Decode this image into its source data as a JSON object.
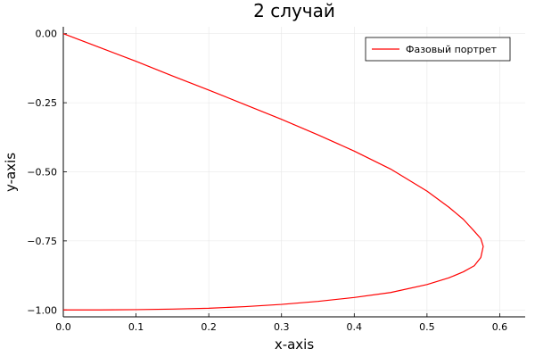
{
  "chart_data": {
    "type": "line",
    "title": "2 случай",
    "xlabel": "x-axis",
    "ylabel": "y-axis",
    "xlim": [
      0,
      0.635
    ],
    "ylim": [
      -1.025,
      0.025
    ],
    "xticks": [
      0.0,
      0.1,
      0.2,
      0.3,
      0.4,
      0.5,
      0.6
    ],
    "xtick_labels": [
      "0.0",
      "0.1",
      "0.2",
      "0.3",
      "0.4",
      "0.5",
      "0.6"
    ],
    "yticks": [
      0.0,
      -0.25,
      -0.5,
      -0.75,
      -1.0
    ],
    "ytick_labels": [
      "0.00",
      "−0.25",
      "−0.50",
      "−0.75",
      "−1.00"
    ],
    "grid": true,
    "legend_position": "top-right",
    "series": [
      {
        "name": "Фазовый портрет",
        "color": "#ff0000",
        "x": [
          0.0,
          0.05,
          0.1,
          0.15,
          0.2,
          0.25,
          0.3,
          0.35,
          0.4,
          0.45,
          0.5,
          0.53,
          0.55,
          0.565,
          0.574,
          0.5773,
          0.574,
          0.565,
          0.55,
          0.53,
          0.5,
          0.45,
          0.4,
          0.35,
          0.3,
          0.25,
          0.2,
          0.15,
          0.1,
          0.05,
          0.0
        ],
        "y": [
          0.0,
          -0.05,
          -0.1,
          -0.153,
          -0.204,
          -0.257,
          -0.31,
          -0.366,
          -0.425,
          -0.49,
          -0.57,
          -0.628,
          -0.672,
          -0.715,
          -0.742,
          -0.77,
          -0.81,
          -0.84,
          -0.862,
          -0.884,
          -0.908,
          -0.937,
          -0.955,
          -0.969,
          -0.98,
          -0.988,
          -0.994,
          -0.997,
          -0.999,
          -1.0,
          -1.0
        ]
      }
    ]
  }
}
